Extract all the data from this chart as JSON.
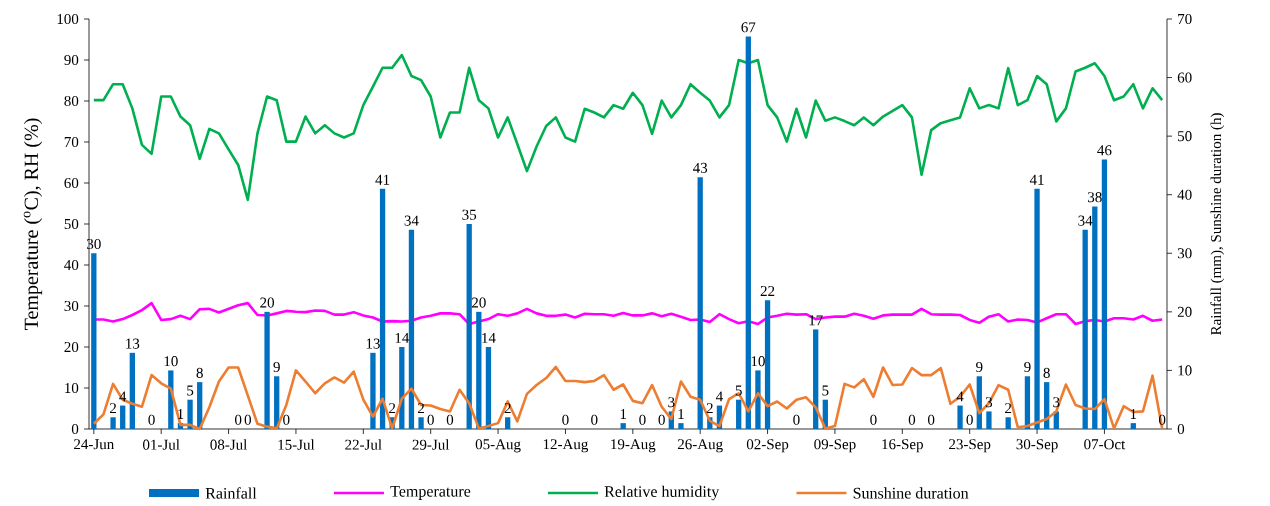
{
  "chart_data": {
    "type": "line",
    "categories": [
      "24-Jun",
      null,
      null,
      null,
      null,
      null,
      null,
      "01-Jul",
      null,
      null,
      null,
      null,
      null,
      null,
      "08-Jul",
      null,
      null,
      null,
      null,
      null,
      null,
      "15-Jul",
      null,
      null,
      null,
      null,
      null,
      null,
      "22-Jul",
      null,
      null,
      null,
      null,
      null,
      null,
      "29-Jul",
      null,
      null,
      null,
      null,
      null,
      null,
      "05-Aug",
      null,
      null,
      null,
      null,
      null,
      null,
      "12-Aug",
      null,
      null,
      null,
      null,
      null,
      null,
      "19-Aug",
      null,
      null,
      null,
      null,
      null,
      null,
      "26-Aug",
      null,
      null,
      null,
      null,
      null,
      null,
      "02-Sep",
      null,
      null,
      null,
      null,
      null,
      null,
      "09-Sep",
      null,
      null,
      null,
      null,
      null,
      null,
      "16-Sep",
      null,
      null,
      null,
      null,
      null,
      null,
      "23-Sep",
      null,
      null,
      null,
      null,
      null,
      null,
      "30-Sep",
      null,
      null,
      null,
      null,
      null,
      null,
      "07-Oct",
      null,
      null,
      null,
      null,
      null,
      null
    ],
    "series": [
      {
        "name": "Rainfall",
        "type": "bar",
        "axis": "y2",
        "color": "#0070c0",
        "data_labels": true,
        "values": [
          30,
          null,
          2,
          4,
          13,
          null,
          0,
          null,
          10,
          1,
          5,
          8,
          null,
          null,
          null,
          0,
          0,
          null,
          20,
          9,
          0,
          null,
          null,
          null,
          null,
          null,
          null,
          null,
          null,
          13,
          41,
          2,
          14,
          34,
          2,
          0,
          null,
          0,
          null,
          35,
          20,
          14,
          null,
          2,
          null,
          null,
          null,
          null,
          null,
          0,
          null,
          null,
          0,
          null,
          null,
          1,
          null,
          0,
          null,
          0,
          3,
          1,
          null,
          43,
          2,
          4,
          null,
          5,
          67,
          10,
          22,
          null,
          null,
          0,
          null,
          17,
          5,
          null,
          null,
          null,
          null,
          0,
          null,
          null,
          null,
          0,
          null,
          0,
          null,
          null,
          4,
          0,
          9,
          3,
          null,
          2,
          null,
          9,
          41,
          8,
          3,
          null,
          null,
          34,
          38,
          46,
          null,
          null,
          1,
          null,
          null,
          0
        ]
      },
      {
        "name": "Temperature",
        "color": "#ff00ff",
        "values": [
          26.7,
          26.7,
          26.2,
          26.8,
          27.8,
          29.0,
          30.7,
          26.6,
          26.8,
          27.6,
          26.8,
          29.2,
          29.3,
          28.4,
          29.3,
          30.2,
          30.7,
          27.8,
          27.7,
          28.2,
          28.8,
          28.6,
          28.5,
          28.9,
          28.8,
          27.9,
          27.9,
          28.5,
          27.7,
          27.2,
          26.2,
          26.3,
          26.2,
          26.4,
          27.2,
          27.6,
          28.2,
          28.2,
          28.0,
          25.6,
          26.2,
          26.8,
          28.0,
          27.6,
          28.2,
          29.3,
          28.2,
          27.6,
          27.6,
          27.9,
          27.2,
          28.1,
          28.0,
          28.0,
          27.6,
          28.3,
          27.7,
          27.7,
          28.2,
          27.5,
          28.1,
          27.4,
          26.6,
          26.7,
          26.1,
          28.0,
          26.8,
          25.8,
          26.3,
          25.6,
          27.2,
          27.6,
          28.1,
          27.9,
          28.0,
          26.8,
          27.2,
          27.4,
          27.4,
          28.1,
          27.6,
          26.9,
          27.7,
          27.9,
          27.9,
          27.9,
          29.3,
          28.0,
          27.9,
          27.9,
          27.8,
          26.6,
          25.9,
          27.4,
          28.0,
          26.2,
          26.7,
          26.6,
          26.0,
          27.0,
          28.0,
          28.0,
          25.6,
          26.3,
          26.6,
          26.2,
          27.0,
          27.0,
          26.7,
          27.6,
          26.4,
          26.7
        ]
      },
      {
        "name": "Relative humidity",
        "color": "#00b050",
        "values": [
          80.2,
          80.2,
          84.1,
          84.1,
          78.2,
          69.3,
          67.1,
          81.1,
          81.1,
          76.2,
          74.1,
          65.9,
          73.2,
          72.1,
          68.2,
          64.4,
          55.9,
          72.1,
          81.1,
          80.2,
          70.1,
          70.1,
          76.2,
          72.1,
          74.1,
          72.1,
          71.1,
          72.1,
          79.0,
          83.5,
          88.1,
          88.1,
          91.2,
          86.1,
          85.1,
          81.1,
          71.1,
          77.2,
          77.2,
          88.1,
          80.2,
          78.2,
          71.1,
          76.0,
          69.5,
          62.9,
          68.9,
          73.9,
          76.0,
          71.1,
          70.1,
          78.1,
          77.2,
          76.0,
          79.0,
          78.1,
          82.0,
          79.0,
          72.0,
          80.1,
          76.0,
          79.0,
          84.1,
          82.0,
          80.1,
          76.0,
          79.0,
          90.0,
          89.2,
          90.0,
          79.0,
          76.0,
          70.1,
          78.1,
          71.1,
          80.1,
          75.2,
          76.0,
          75.1,
          74.1,
          76.0,
          74.1,
          76.2,
          77.6,
          79.0,
          76.0,
          62.0,
          72.9,
          74.6,
          75.3,
          76.0,
          83.1,
          78.2,
          79.0,
          78.2,
          88.0,
          79.0,
          80.2,
          86.1,
          84.1,
          75.0,
          78.2,
          87.2,
          88.1,
          89.2,
          86.1,
          80.2,
          81.1,
          84.1,
          78.2,
          83.1,
          80.2
        ]
      },
      {
        "name": "Sunshine duration",
        "axis": "y2",
        "color": "#ed7d31",
        "values": [
          0.9,
          2.5,
          7.7,
          5.0,
          4.3,
          3.8,
          9.2,
          7.8,
          6.9,
          0.7,
          0.7,
          0.0,
          3.7,
          8.1,
          10.5,
          10.5,
          5.7,
          0.9,
          0.4,
          0.1,
          4.1,
          10.0,
          8.1,
          6.1,
          7.8,
          8.8,
          7.9,
          9.8,
          5.0,
          2.1,
          5.2,
          0.1,
          5.2,
          6.9,
          4.1,
          4.0,
          3.4,
          3.0,
          6.7,
          4.4,
          0.1,
          0.5,
          1.0,
          4.7,
          1.3,
          6.0,
          7.5,
          8.7,
          10.6,
          8.2,
          8.2,
          8.0,
          8.2,
          9.2,
          6.7,
          7.6,
          4.8,
          4.4,
          7.5,
          3.8,
          1.7,
          8.1,
          5.5,
          5.0,
          1.4,
          0.5,
          5.1,
          6.1,
          3.0,
          6.1,
          3.9,
          4.7,
          3.5,
          5.0,
          5.4,
          3.7,
          0.1,
          0.5,
          7.7,
          7.1,
          8.5,
          5.5,
          10.5,
          7.5,
          7.6,
          10.4,
          9.2,
          9.2,
          10.4,
          4.3,
          5.5,
          7.6,
          2.7,
          4.4,
          7.5,
          6.7,
          0.3,
          0.5,
          1.1,
          1.7,
          3.0,
          7.6,
          4.1,
          3.5,
          3.4,
          5.1,
          0.1,
          3.9,
          2.9,
          3.0,
          9.1,
          0.1
        ]
      }
    ],
    "ylabel": "Temperature ($^{o}$C), RH (%)",
    "y2label": "Rainfall (mm),  Sunshine duration (h)",
    "ylim": [
      0,
      100
    ],
    "yticks": [
      0,
      10,
      20,
      30,
      40,
      50,
      60,
      70,
      80,
      90,
      100
    ],
    "y2lim": [
      0,
      70
    ],
    "y2ticks": [
      0,
      10,
      20,
      30,
      40,
      50,
      60,
      70
    ],
    "legend": "bottom"
  }
}
